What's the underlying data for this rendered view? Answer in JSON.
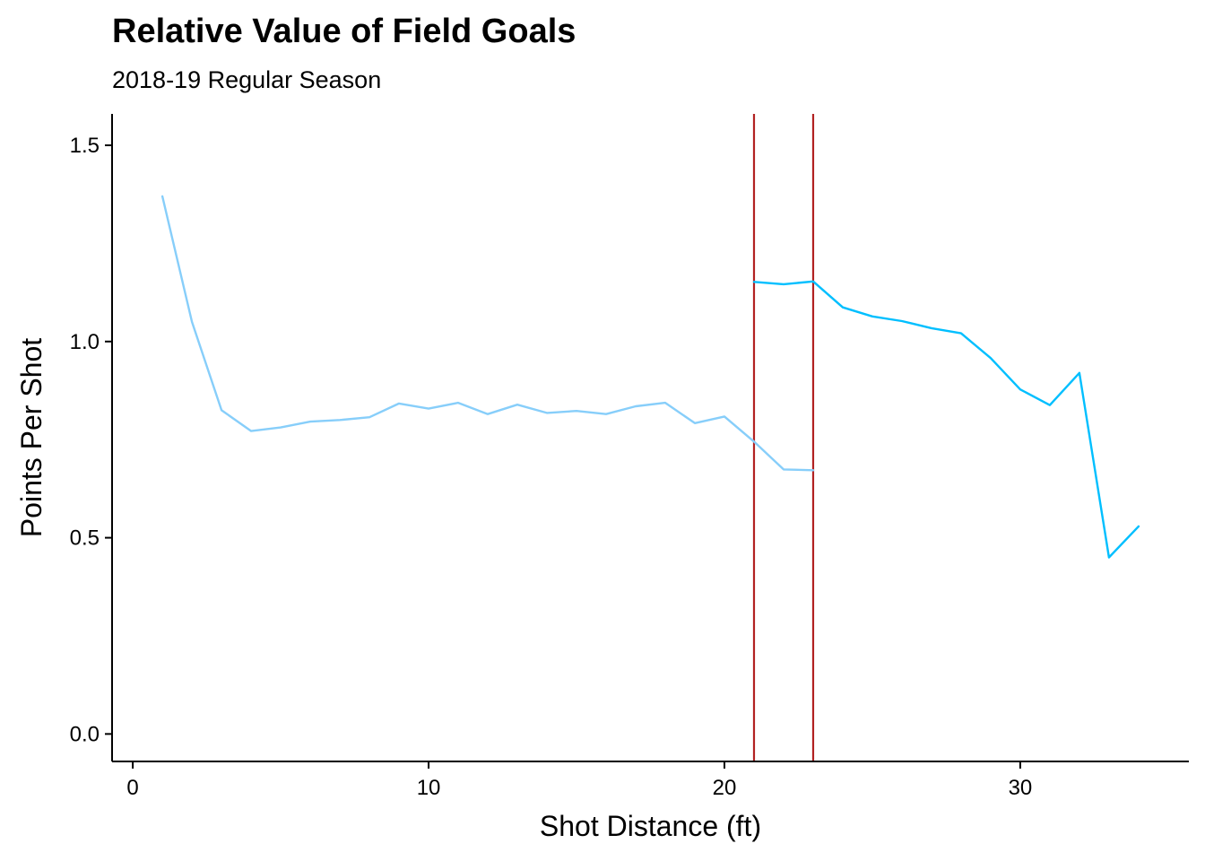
{
  "chart_data": {
    "type": "line",
    "title": "Relative Value of Field Goals",
    "subtitle": "2018-19 Regular Season",
    "xlabel": "Shot Distance (ft)",
    "ylabel": "Points Per Shot",
    "xlim": [
      -0.7,
      35.7
    ],
    "ylim": [
      -0.07,
      1.58
    ],
    "xticks": [
      0,
      10,
      20,
      30
    ],
    "yticks": [
      0.0,
      0.5,
      1.0,
      1.5
    ],
    "xtick_labels": [
      "0",
      "10",
      "20",
      "30"
    ],
    "ytick_labels": [
      "0.0",
      "0.5",
      "1.0",
      "1.5"
    ],
    "grid": false,
    "legend": "none",
    "series": [
      {
        "color": "#87CEFA",
        "x": [
          1,
          2,
          3,
          4,
          5,
          6,
          7,
          8,
          9,
          10,
          11,
          12,
          13,
          14,
          15,
          16,
          17,
          18,
          19,
          20,
          21,
          22,
          23
        ],
        "y": [
          1.37,
          1.05,
          0.825,
          0.772,
          0.781,
          0.796,
          0.8,
          0.807,
          0.842,
          0.829,
          0.844,
          0.815,
          0.839,
          0.818,
          0.823,
          0.815,
          0.835,
          0.844,
          0.792,
          0.809,
          0.745,
          0.674,
          0.672
        ]
      },
      {
        "color": "#00BFFF",
        "x": [
          21,
          22,
          23,
          24,
          25,
          26,
          27,
          28,
          29,
          30,
          31,
          32,
          33,
          34
        ],
        "y": [
          1.152,
          1.146,
          1.153,
          1.087,
          1.064,
          1.052,
          1.034,
          1.021,
          0.958,
          0.878,
          0.838,
          0.92,
          0.45,
          0.529
        ]
      }
    ],
    "vlines": [
      {
        "x": 21,
        "color": "#B22222"
      },
      {
        "x": 23,
        "color": "#B22222"
      }
    ]
  }
}
